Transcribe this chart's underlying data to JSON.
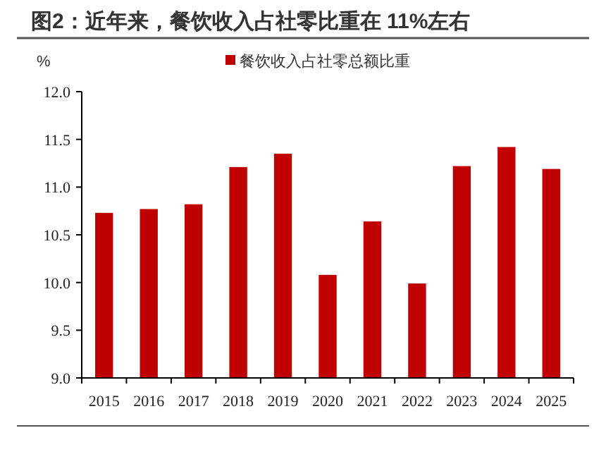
{
  "chart_data": {
    "type": "bar",
    "title": "图2：近年来，餐饮收入占社零比重在 11%左右",
    "ylabel": "%",
    "categories": [
      "2015",
      "2016",
      "2017",
      "2018",
      "2019",
      "2020",
      "2021",
      "2022",
      "2023",
      "2024",
      "2025"
    ],
    "series": [
      {
        "name": "餐饮收入占社零总额比重",
        "color": "#c00000",
        "values": [
          10.73,
          10.77,
          10.82,
          11.21,
          11.35,
          10.08,
          10.64,
          9.99,
          11.22,
          11.42,
          11.19
        ]
      }
    ],
    "ylim": [
      9.0,
      12.0
    ],
    "yticks": [
      {
        "value": 9.0,
        "label": "9.0"
      },
      {
        "value": 9.5,
        "label": "9.5"
      },
      {
        "value": 10.0,
        "label": "10.0"
      },
      {
        "value": 10.5,
        "label": "10.5"
      },
      {
        "value": 11.0,
        "label": "11.0"
      },
      {
        "value": 11.5,
        "label": "11.5"
      },
      {
        "value": 12.0,
        "label": "12.0"
      }
    ],
    "legend": "top",
    "grid": false
  }
}
